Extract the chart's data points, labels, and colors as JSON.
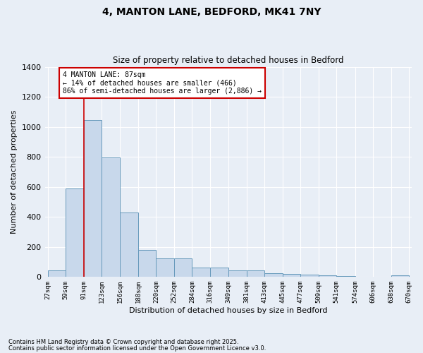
{
  "title1": "4, MANTON LANE, BEDFORD, MK41 7NY",
  "title2": "Size of property relative to detached houses in Bedford",
  "xlabel": "Distribution of detached houses by size in Bedford",
  "ylabel": "Number of detached properties",
  "bar_color": "#c8d8eb",
  "bar_edge_color": "#6699bb",
  "background_color": "#e8eef6",
  "grid_color": "#ffffff",
  "bins": [
    27,
    59,
    91,
    123,
    156,
    188,
    220,
    252,
    284,
    316,
    349,
    381,
    413,
    445,
    477,
    509,
    541,
    574,
    606,
    638,
    670
  ],
  "counts": [
    45,
    590,
    1045,
    795,
    430,
    180,
    125,
    125,
    65,
    65,
    45,
    45,
    25,
    20,
    15,
    10,
    5,
    0,
    0,
    10
  ],
  "vline_x": 91,
  "vline_color": "#cc0000",
  "annotation_text": "4 MANTON LANE: 87sqm\n← 14% of detached houses are smaller (466)\n86% of semi-detached houses are larger (2,886) →",
  "annotation_box_color": "#ffffff",
  "annotation_box_edge": "#cc0000",
  "ylim": [
    0,
    1400
  ],
  "yticks": [
    0,
    200,
    400,
    600,
    800,
    1000,
    1200,
    1400
  ],
  "tick_labels": [
    "27sqm",
    "59sqm",
    "91sqm",
    "123sqm",
    "156sqm",
    "188sqm",
    "220sqm",
    "252sqm",
    "284sqm",
    "316sqm",
    "349sqm",
    "381sqm",
    "413sqm",
    "445sqm",
    "477sqm",
    "509sqm",
    "541sqm",
    "574sqm",
    "606sqm",
    "638sqm",
    "670sqm"
  ],
  "footnote1": "Contains HM Land Registry data © Crown copyright and database right 2025.",
  "footnote2": "Contains public sector information licensed under the Open Government Licence v3.0."
}
